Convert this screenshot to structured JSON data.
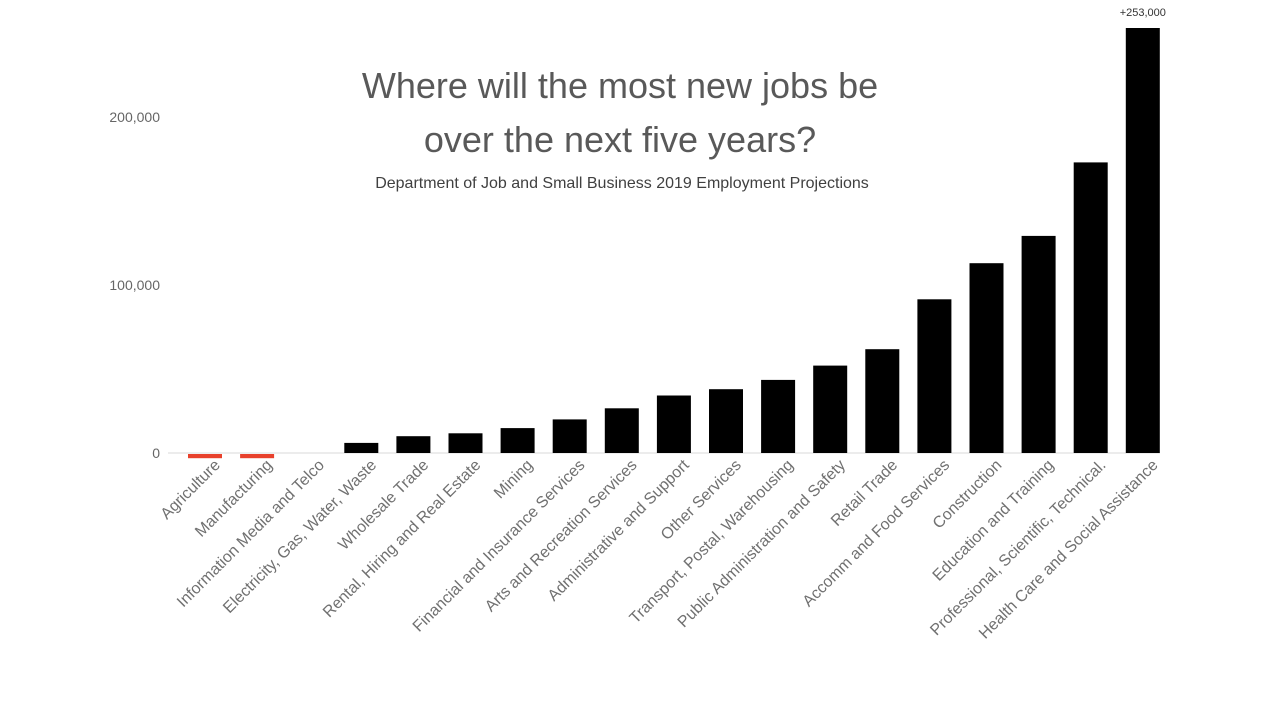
{
  "chart_data": {
    "type": "bar",
    "title": "Where will the most new jobs be over the next five years?",
    "title_lines": [
      "Where will the most new jobs be",
      "over the next five years?"
    ],
    "subtitle": "Department of Job and Small Business 2019 Employment Projections",
    "xlabel": "",
    "ylabel": "",
    "ylim": [
      -5000,
      253000
    ],
    "yticks": [
      0,
      100000,
      200000
    ],
    "ytick_labels": [
      "0",
      "100,000",
      "200,000"
    ],
    "grid": false,
    "legend": "none",
    "categories": [
      "Agriculture",
      "Manufacturing",
      "Information Media and Telco",
      "Electricity, Gas, Water, Waste",
      "Wholesale Trade",
      "Rental, Hiring and Real Estate",
      "Mining",
      "Financial and Insurance Services",
      "Arts and Recreation Services",
      "Administrative and Support",
      "Other Services",
      "Transport, Postal, Warehousing",
      "Public Administration and Safety",
      "Retail Trade",
      "Accomm and Food Services",
      "Construction",
      "Education and Training",
      "Professional, Scientific, Technical.",
      "Health Care and Social Assistance"
    ],
    "values": [
      -2500,
      -2500,
      0,
      6000,
      10000,
      11700,
      14800,
      20000,
      26600,
      34200,
      38000,
      43500,
      52000,
      61800,
      91500,
      113000,
      129200,
      173000,
      253000
    ],
    "data_labels": [
      {
        "category": "Health Care and Social Assistance",
        "text": "+253,000"
      }
    ],
    "colors": {
      "positive": "#000000",
      "negative": "#e8412c",
      "axis": "#d9d9d9",
      "background": "#ffffff"
    }
  }
}
